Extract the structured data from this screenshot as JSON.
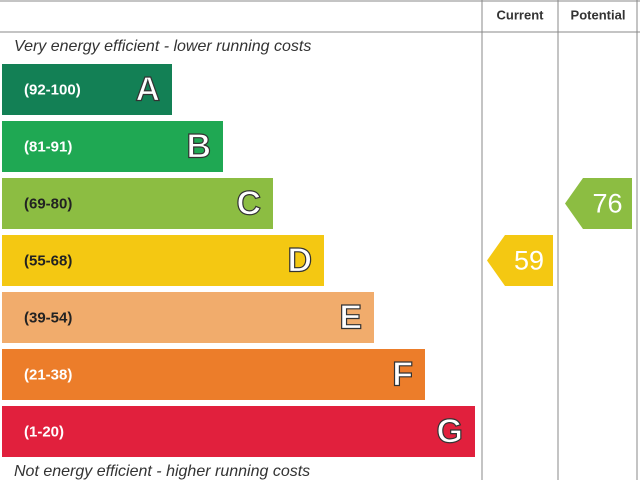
{
  "chart_data": {
    "type": "epc",
    "columns": [
      "Current",
      "Potential"
    ],
    "top_note": "Very energy efficient - lower running costs",
    "bottom_note": "Not energy efficient - higher running costs",
    "bands": [
      {
        "letter": "A",
        "range": "(92-100)",
        "color": "#138055"
      },
      {
        "letter": "B",
        "range": "(81-91)",
        "color": "#1fa853"
      },
      {
        "letter": "C",
        "range": "(69-80)",
        "color": "#8cbd42"
      },
      {
        "letter": "D",
        "range": "(55-68)",
        "color": "#f4c812"
      },
      {
        "letter": "E",
        "range": "(39-54)",
        "color": "#f1ac6c"
      },
      {
        "letter": "F",
        "range": "(21-38)",
        "color": "#ec7d2a"
      },
      {
        "letter": "G",
        "range": "(1-20)",
        "color": "#e1203d"
      }
    ],
    "values": [
      59,
      76
    ]
  }
}
